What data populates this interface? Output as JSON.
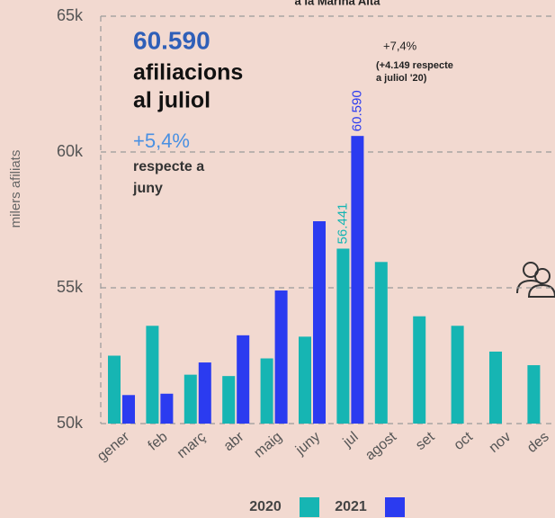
{
  "chart_data": {
    "type": "bar",
    "title": "a la Marina Alta",
    "y_label": "milers afiliats",
    "categories": [
      "gener",
      "feb",
      "març",
      "abr",
      "maig",
      "juny",
      "jul",
      "agost",
      "set",
      "oct",
      "nov",
      "des"
    ],
    "series": [
      {
        "name": "2020",
        "color": "#16b5b3",
        "values": [
          52500,
          53600,
          51800,
          51750,
          52400,
          53200,
          56441,
          55950,
          53950,
          53600,
          52650,
          52150
        ],
        "value_labels": [
          null,
          null,
          null,
          null,
          null,
          null,
          "56.441",
          null,
          null,
          null,
          null,
          null
        ]
      },
      {
        "name": "2021",
        "color": "#2b3bf0",
        "values": [
          51050,
          51100,
          52250,
          53250,
          54900,
          57450,
          60590,
          null,
          null,
          null,
          null,
          null
        ],
        "value_labels": [
          null,
          null,
          null,
          null,
          null,
          null,
          "60.590",
          null,
          null,
          null,
          null,
          null
        ]
      }
    ],
    "ylim": [
      50000,
      65000
    ],
    "yticks": [
      {
        "value": 50000,
        "label": "50k"
      },
      {
        "value": 55000,
        "label": "55k"
      },
      {
        "value": 60000,
        "label": "60k"
      },
      {
        "value": 65000,
        "label": "65k"
      }
    ],
    "grid": true,
    "annotations": {
      "headline": "60.590",
      "line1": "afiliacions",
      "line2": "al juliol",
      "monthly_change": "+5,4%",
      "monthly_text1": "respecte a",
      "monthly_text2": "juny",
      "yearly_change": "+7,4%",
      "yearly_text1": "(+4.149 respecte",
      "yearly_text2": "a juliol '20)"
    }
  }
}
